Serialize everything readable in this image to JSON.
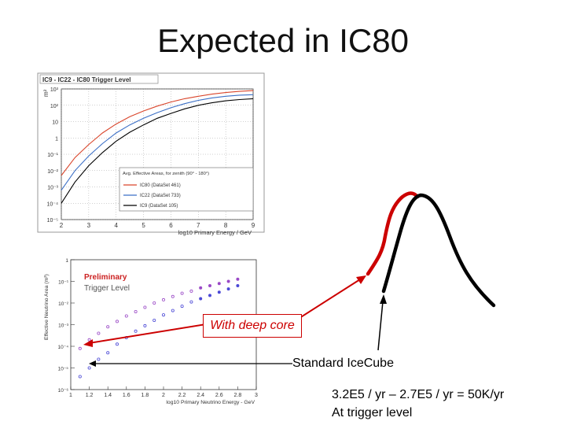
{
  "page": {
    "title": "Expected in IC80"
  },
  "colors": {
    "ic80": "#d9452b",
    "ic22": "#3b6fc6",
    "ic9": "#000000",
    "deepcore": "#cc0000",
    "standard": "#000000",
    "points_blue": "#4b49d6",
    "points_purple": "#9a49c6"
  },
  "chart_data": [
    {
      "type": "line",
      "title": "IC9 - IC22 - IC80  Trigger Level",
      "xlabel": "log10 Primary Energy / GeV",
      "ylabel": "m²",
      "xlim": [
        2,
        9
      ],
      "ylim_log10": [
        -5,
        3
      ],
      "x_ticks": [
        "2",
        "3",
        "4",
        "5",
        "6",
        "7",
        "8",
        "9"
      ],
      "y_ticks": [
        "10³",
        "10²",
        "10",
        "1",
        "10⁻¹",
        "10⁻²",
        "10⁻³",
        "10⁻⁴",
        "10⁻⁵"
      ],
      "legend_title": "Avg. Effective Areas, for zenith (90° - 180°)",
      "series": [
        {
          "name": "IC80 (DataSet 461)",
          "x": [
            2.0,
            2.5,
            3.0,
            3.5,
            4.0,
            4.5,
            5.0,
            5.5,
            6.0,
            6.5,
            7.0,
            7.5,
            8.0,
            8.5,
            9.0
          ],
          "y_log10": [
            -2.3,
            -1.2,
            -0.4,
            0.3,
            0.85,
            1.3,
            1.65,
            1.95,
            2.2,
            2.4,
            2.55,
            2.68,
            2.78,
            2.85,
            2.9
          ]
        },
        {
          "name": "IC22 (DataSet 733)",
          "x": [
            2.0,
            2.5,
            3.0,
            3.5,
            4.0,
            4.5,
            5.0,
            5.5,
            6.0,
            6.5,
            7.0,
            7.5,
            8.0,
            8.5,
            9.0
          ],
          "y_log10": [
            -3.2,
            -2.0,
            -1.1,
            -0.35,
            0.3,
            0.8,
            1.2,
            1.55,
            1.85,
            2.1,
            2.3,
            2.45,
            2.55,
            2.62,
            2.65
          ]
        },
        {
          "name": "IC9 (DataSet 105)",
          "x": [
            2.0,
            2.5,
            3.0,
            3.5,
            4.0,
            4.5,
            5.0,
            5.5,
            6.0,
            6.5,
            7.0,
            7.5,
            8.0,
            8.5,
            9.0
          ],
          "y_log10": [
            -4.0,
            -2.7,
            -1.7,
            -0.9,
            -0.2,
            0.35,
            0.8,
            1.2,
            1.5,
            1.78,
            2.0,
            2.15,
            2.27,
            2.35,
            2.4
          ]
        }
      ]
    },
    {
      "type": "scatter",
      "title": "Preliminary",
      "subtitle": "Trigger Level",
      "xlabel": "log10 Primary Neutrino Energy - GeV",
      "ylabel": "Effective Neutrino Area (m²)",
      "xlim": [
        1,
        3
      ],
      "ylim_log10": [
        -6,
        0
      ],
      "x_ticks": [
        "1",
        "1.2",
        "1.4",
        "1.6",
        "1.8",
        "2",
        "2.2",
        "2.4",
        "2.6",
        "2.8",
        "3"
      ],
      "y_ticks": [
        "1",
        "10⁻¹",
        "10⁻²",
        "10⁻³",
        "10⁻⁴",
        "10⁻⁵",
        "10⁻⁶"
      ],
      "series": [
        {
          "name": "With deep core",
          "x": [
            1.1,
            1.2,
            1.3,
            1.4,
            1.5,
            1.6,
            1.7,
            1.8,
            1.9,
            2.0,
            2.1,
            2.2,
            2.3,
            2.4,
            2.5,
            2.6,
            2.7,
            2.8
          ],
          "y_log10": [
            -4.1,
            -3.7,
            -3.4,
            -3.1,
            -2.85,
            -2.6,
            -2.4,
            -2.2,
            -2.0,
            -1.85,
            -1.7,
            -1.55,
            -1.45,
            -1.3,
            -1.2,
            -1.1,
            -1.0,
            -0.9
          ]
        },
        {
          "name": "Standard IceCube",
          "x": [
            1.1,
            1.2,
            1.3,
            1.4,
            1.5,
            1.6,
            1.7,
            1.8,
            1.9,
            2.0,
            2.1,
            2.2,
            2.3,
            2.4,
            2.5,
            2.6,
            2.7,
            2.8
          ],
          "y_log10": [
            -5.4,
            -5.0,
            -4.6,
            -4.3,
            -3.9,
            -3.6,
            -3.3,
            -3.05,
            -2.8,
            -2.55,
            -2.35,
            -2.15,
            -1.95,
            -1.8,
            -1.65,
            -1.5,
            -1.35,
            -1.2
          ]
        }
      ]
    }
  ],
  "annotations": {
    "deep_core_label": "With deep core",
    "standard_label": "Standard IceCube",
    "rate_line1": "3.2E5 / yr – 2.7E5 / yr = 50K/yr",
    "rate_line2": "At trigger level"
  }
}
